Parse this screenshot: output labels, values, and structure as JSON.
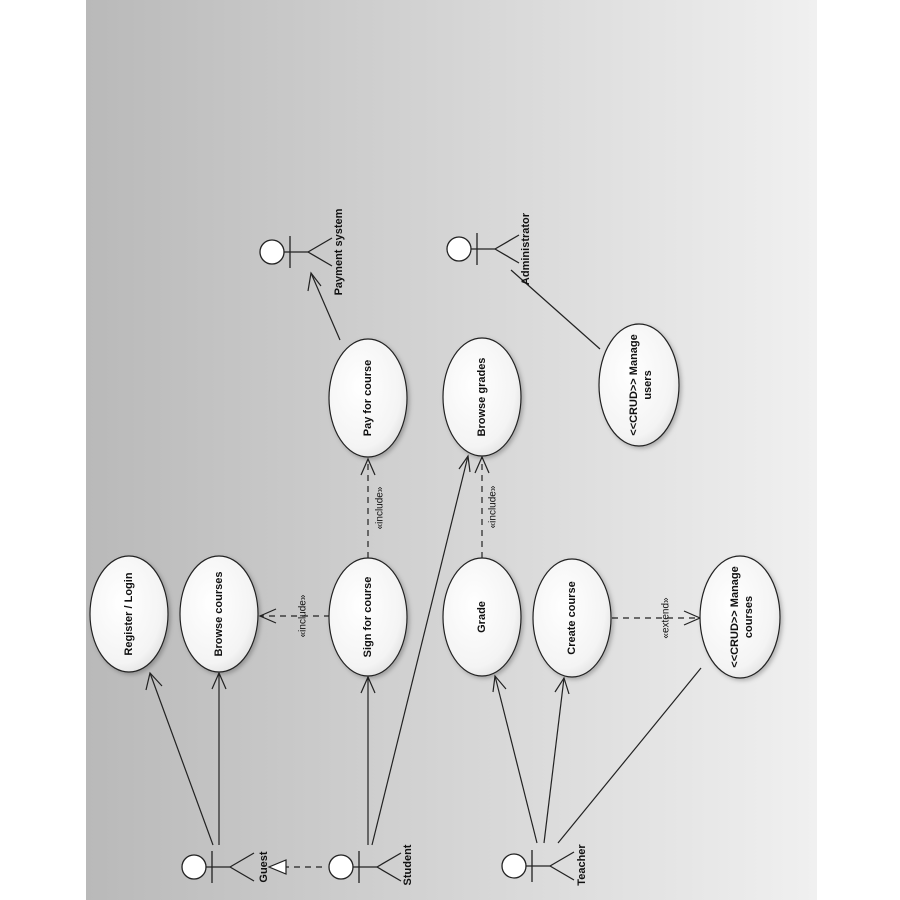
{
  "background": {
    "gradient_start": "#b9b9b9",
    "gradient_end": "#f0f0f0",
    "margin_color": "#ffffff"
  },
  "actors": [
    {
      "id": "guest",
      "name": "Guest"
    },
    {
      "id": "student",
      "name": "Student"
    },
    {
      "id": "teacher",
      "name": "Teacher"
    },
    {
      "id": "payment",
      "name": "Payment system"
    },
    {
      "id": "admin",
      "name": "Administrator"
    }
  ],
  "use_cases": [
    {
      "id": "register",
      "lines": [
        "Register / Login"
      ]
    },
    {
      "id": "browse_courses",
      "lines": [
        "Browse courses"
      ]
    },
    {
      "id": "sign",
      "lines": [
        "Sign for course"
      ]
    },
    {
      "id": "pay",
      "lines": [
        "Pay for course"
      ]
    },
    {
      "id": "grade",
      "lines": [
        "Grade"
      ]
    },
    {
      "id": "browse_grades",
      "lines": [
        "Browse grades"
      ]
    },
    {
      "id": "create",
      "lines": [
        "Create course"
      ]
    },
    {
      "id": "manage_courses",
      "lines": [
        "<<CRUD>> Manage",
        "courses"
      ]
    },
    {
      "id": "manage_users",
      "lines": [
        "<<CRUD>> Manage",
        "users"
      ]
    }
  ],
  "relations": [
    {
      "id": "include1",
      "label": "«include»"
    },
    {
      "id": "include2",
      "label": "«include»"
    },
    {
      "id": "include3",
      "label": "«include»"
    },
    {
      "id": "extend1",
      "label": "«extend»"
    }
  ]
}
